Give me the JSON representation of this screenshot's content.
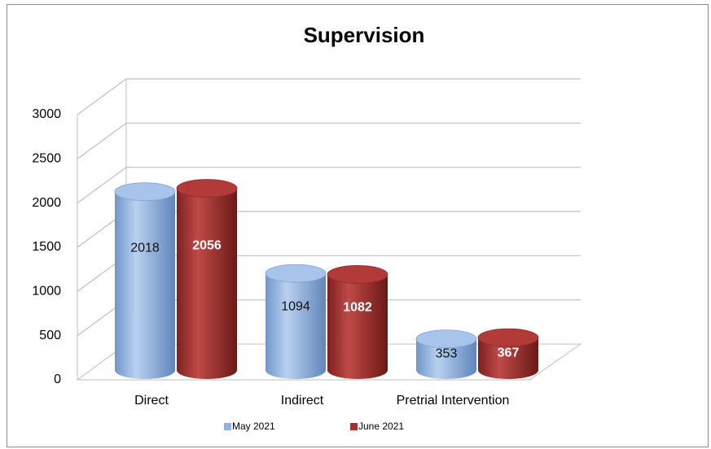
{
  "chart_data": {
    "type": "bar",
    "title": "Supervision",
    "categories": [
      "Direct",
      "Indirect",
      "Pretrial Intervention"
    ],
    "series": [
      {
        "name": "May 2021",
        "color": "#8db3e2",
        "values": [
          2018,
          1094,
          353
        ]
      },
      {
        "name": "June 2021",
        "color": "#a8302e",
        "values": [
          2056,
          1082,
          367
        ]
      }
    ],
    "ylim": [
      0,
      3000
    ],
    "yticks": [
      0,
      500,
      1000,
      1500,
      2000,
      2500,
      3000
    ],
    "grid": true,
    "legend": "bottom"
  }
}
